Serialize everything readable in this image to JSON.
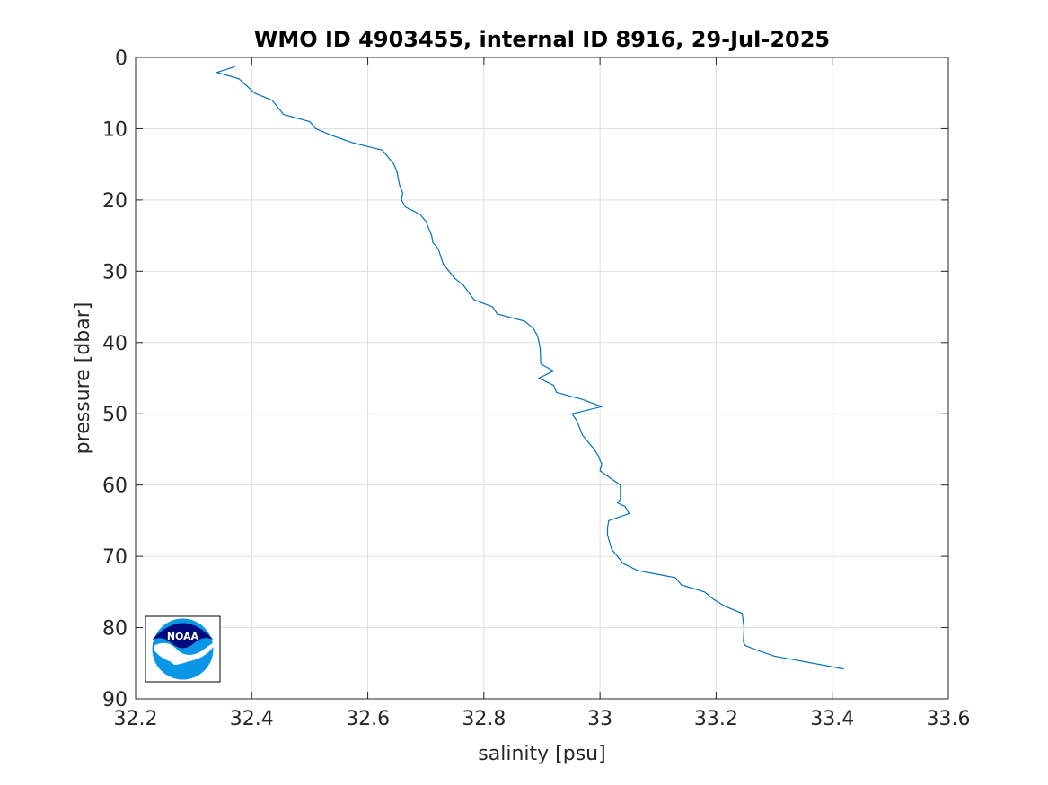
{
  "logo": {
    "text": "NOAA",
    "name": "noaa-logo"
  },
  "chart_data": {
    "type": "line",
    "title": "WMO ID 4903455, internal ID 8916, 29-Jul-2025",
    "xlabel": "salinity [psu]",
    "ylabel": "pressure [dbar]",
    "xlim": [
      32.2,
      33.6
    ],
    "ylim": [
      0,
      90
    ],
    "y_reversed": true,
    "grid": true,
    "xticks": [
      "32.2",
      "32.4",
      "32.6",
      "32.8",
      "33",
      "33.2",
      "33.4",
      "33.6"
    ],
    "yticks": [
      "0",
      "10",
      "20",
      "30",
      "40",
      "50",
      "60",
      "70",
      "80",
      "90"
    ],
    "colors": {
      "series": "#0072bd",
      "grid": "#dfdfdf",
      "axis": "#262626"
    },
    "series": [
      {
        "x": [
          32.371,
          32.34,
          32.378,
          32.405,
          32.435,
          32.445,
          32.455,
          32.5,
          32.51,
          32.54,
          32.575,
          32.625,
          32.635,
          32.645,
          32.65,
          32.655,
          32.66,
          32.658,
          32.665,
          32.69,
          32.7,
          32.705,
          32.71,
          32.712,
          32.718,
          32.722,
          32.73,
          32.75,
          32.765,
          32.783,
          32.815,
          32.823,
          32.87,
          32.885,
          32.892,
          32.895,
          32.897,
          32.898,
          32.92,
          32.895,
          32.92,
          32.925,
          32.97,
          33.003,
          32.952,
          32.96,
          32.965,
          32.97,
          32.98,
          32.99,
          32.998,
          33.0,
          33.003,
          33.0,
          33.035,
          33.035,
          33.03,
          33.043,
          33.05,
          33.015,
          33.013,
          33.013,
          33.02,
          33.04,
          33.065,
          33.13,
          33.14,
          33.18,
          33.195,
          33.215,
          33.245,
          33.248,
          33.247,
          33.25,
          33.265,
          33.3,
          33.42
        ],
        "y": [
          1.3,
          2.1,
          3.0,
          5.0,
          6.0,
          7.0,
          8.0,
          9.0,
          10.0,
          11.0,
          12.0,
          13.0,
          14.0,
          15.0,
          16.0,
          18.0,
          19.0,
          20.0,
          21.0,
          22.0,
          23.0,
          24.0,
          25.0,
          26.0,
          26.5,
          27.0,
          29.0,
          31.0,
          32.0,
          34.0,
          35.0,
          36.0,
          37.0,
          38.0,
          39.0,
          40.0,
          41.0,
          43.0,
          44.0,
          45.0,
          46.0,
          47.0,
          48.0,
          49.0,
          50.0,
          51.0,
          52.0,
          53.0,
          54.0,
          55.0,
          56.0,
          56.5,
          57.0,
          58.0,
          60.0,
          62.0,
          62.5,
          63.0,
          64.0,
          65.0,
          66.0,
          67.0,
          69.0,
          71.0,
          72.0,
          73.0,
          74.0,
          75.0,
          76.0,
          77.0,
          78.0,
          80.0,
          82.0,
          82.5,
          83.0,
          84.0,
          85.8
        ]
      }
    ]
  }
}
